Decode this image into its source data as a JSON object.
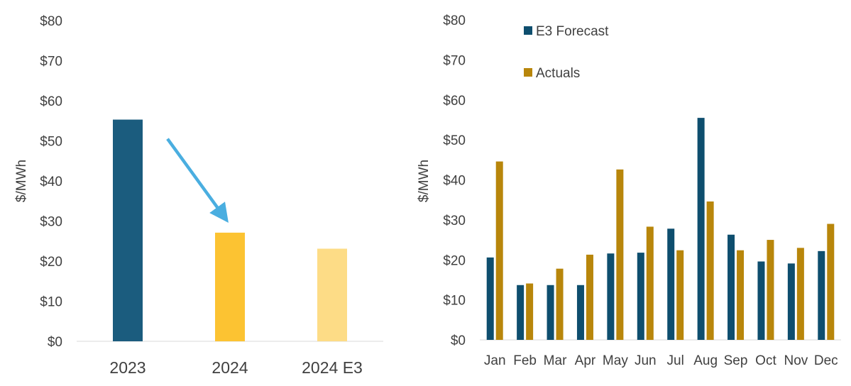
{
  "chart_data": [
    {
      "type": "bar",
      "categories": [
        "2023",
        "2024",
        "2024 E3"
      ],
      "values": [
        55.3,
        27.1,
        23.1
      ],
      "colors": [
        "#1b5c7e",
        "#fcc332",
        "#fddc86"
      ],
      "ylabel": "$/MWh",
      "ylim": [
        0,
        80
      ],
      "yticks": [
        "$0",
        "$10",
        "$20",
        "$30",
        "$40",
        "$50",
        "$60",
        "$70",
        "$80"
      ],
      "grid": false,
      "annotation": {
        "type": "arrow",
        "from": "2023",
        "to": "2024",
        "color": "#4aaee0"
      }
    },
    {
      "type": "bar",
      "categories": [
        "Jan",
        "Feb",
        "Mar",
        "Apr",
        "May",
        "Jun",
        "Jul",
        "Aug",
        "Sep",
        "Oct",
        "Nov",
        "Dec"
      ],
      "series": [
        {
          "name": "E3 Forecast",
          "color": "#0e4e6e",
          "values": [
            20.6,
            13.7,
            13.7,
            13.7,
            21.6,
            21.8,
            27.8,
            55.5,
            26.3,
            19.6,
            19.1,
            22.2
          ]
        },
        {
          "name": "Actuals",
          "color": "#b8860b",
          "values": [
            44.6,
            14.1,
            17.8,
            21.3,
            42.6,
            28.3,
            22.4,
            34.6,
            22.4,
            25.0,
            23.0,
            29.0
          ]
        }
      ],
      "ylabel": "$/MWh",
      "ylim": [
        0,
        80
      ],
      "yticks": [
        "$0",
        "$10",
        "$20",
        "$30",
        "$40",
        "$50",
        "$60",
        "$70",
        "$80"
      ],
      "grid": false,
      "legend": "top-left"
    }
  ]
}
